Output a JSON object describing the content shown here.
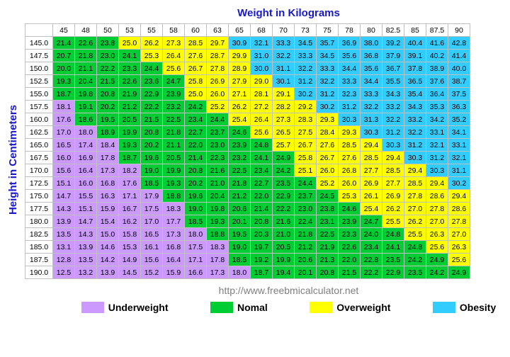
{
  "title_x": "Weight in Kilograms",
  "title_y": "Height in Centimeters",
  "source": "http://www.freebmicalculator.net",
  "colors": {
    "underweight": "#cc99ff",
    "normal": "#00cc33",
    "overweight": "#ffff00",
    "obesity": "#33ccff",
    "border": "#c0c0c0",
    "label": "#1919c8",
    "source": "#808080"
  },
  "thresholds": {
    "underweight_max": 18.5,
    "normal_max": 25.0,
    "overweight_max": 30.0
  },
  "weights": [
    45,
    48,
    50,
    53,
    55,
    58,
    60,
    63,
    65,
    68,
    70,
    73,
    75,
    78,
    80,
    82.5,
    85,
    87.5,
    90
  ],
  "heights": [
    145.0,
    147.5,
    150.0,
    152.5,
    155.0,
    157.5,
    160.0,
    162.5,
    165.0,
    167.5,
    170.0,
    172.5,
    175.0,
    177.5,
    180.0,
    182.5,
    185.0,
    187.5,
    190.0
  ],
  "cells": [
    [
      21.4,
      22.6,
      23.8,
      25.0,
      26.2,
      27.3,
      28.5,
      29.7,
      30.9,
      32.1,
      33.3,
      34.5,
      35.7,
      36.9,
      38.0,
      39.2,
      40.4,
      41.6,
      42.8
    ],
    [
      20.7,
      21.8,
      23.0,
      24.1,
      25.3,
      26.4,
      27.6,
      28.7,
      29.9,
      31.0,
      32.2,
      33.3,
      34.5,
      35.6,
      36.8,
      37.9,
      39.1,
      40.2,
      41.4
    ],
    [
      20.0,
      21.1,
      22.2,
      23.3,
      24.4,
      25.6,
      26.7,
      27.8,
      28.9,
      30.0,
      31.1,
      32.2,
      33.3,
      34.4,
      35.6,
      36.7,
      37.8,
      38.9,
      40.0
    ],
    [
      19.3,
      20.4,
      21.5,
      22.6,
      23.6,
      24.7,
      25.8,
      26.9,
      27.9,
      29.0,
      30.1,
      31.2,
      32.2,
      33.3,
      34.4,
      35.5,
      36.5,
      37.6,
      38.7
    ],
    [
      18.7,
      19.8,
      20.8,
      21.9,
      22.9,
      23.9,
      25.0,
      26.0,
      27.1,
      28.1,
      29.1,
      30.2,
      31.2,
      32.3,
      33.3,
      34.3,
      35.4,
      36.4,
      37.5
    ],
    [
      18.1,
      19.1,
      20.2,
      21.2,
      22.2,
      23.2,
      24.2,
      25.2,
      26.2,
      27.2,
      28.2,
      29.2,
      30.2,
      31.2,
      32.2,
      33.2,
      34.3,
      35.3,
      36.3
    ],
    [
      17.6,
      18.6,
      19.5,
      20.5,
      21.5,
      22.5,
      23.4,
      24.4,
      25.4,
      26.4,
      27.3,
      28.3,
      29.3,
      30.3,
      31.3,
      32.2,
      33.2,
      34.2,
      35.2
    ],
    [
      17.0,
      18.0,
      18.9,
      19.9,
      20.8,
      21.8,
      22.7,
      23.7,
      24.6,
      25.6,
      26.5,
      27.5,
      28.4,
      29.3,
      30.3,
      31.2,
      32.2,
      33.1,
      34.1
    ],
    [
      16.5,
      17.4,
      18.4,
      19.3,
      20.2,
      21.1,
      22.0,
      23.0,
      23.9,
      24.8,
      25.7,
      26.7,
      27.6,
      28.5,
      29.4,
      30.3,
      31.2,
      32.1,
      33.1
    ],
    [
      16.0,
      16.9,
      17.8,
      18.7,
      19.6,
      20.5,
      21.4,
      22.3,
      23.2,
      24.1,
      24.9,
      25.8,
      26.7,
      27.6,
      28.5,
      29.4,
      30.3,
      31.2,
      32.1
    ],
    [
      15.6,
      16.4,
      17.3,
      18.2,
      19.0,
      19.9,
      20.8,
      21.6,
      22.5,
      23.4,
      24.2,
      25.1,
      26.0,
      26.8,
      27.7,
      28.5,
      29.4,
      30.3,
      31.1
    ],
    [
      15.1,
      16.0,
      16.8,
      17.6,
      18.5,
      19.3,
      20.2,
      21.0,
      21.8,
      22.7,
      23.5,
      24.4,
      25.2,
      26.0,
      26.9,
      27.7,
      28.5,
      29.4,
      30.2
    ],
    [
      14.7,
      15.5,
      16.3,
      17.1,
      17.9,
      18.8,
      19.6,
      20.4,
      21.2,
      22.0,
      22.9,
      23.7,
      24.5,
      25.3,
      26.1,
      26.9,
      27.8,
      28.6,
      29.4
    ],
    [
      14.3,
      15.1,
      15.9,
      16.7,
      17.5,
      18.3,
      19.0,
      19.8,
      20.6,
      21.4,
      22.2,
      23.0,
      23.8,
      24.6,
      25.4,
      26.2,
      27.0,
      27.8,
      28.6
    ],
    [
      13.9,
      14.7,
      15.4,
      16.2,
      17.0,
      17.7,
      18.5,
      19.3,
      20.1,
      20.8,
      21.6,
      22.4,
      23.1,
      23.9,
      24.7,
      25.5,
      26.2,
      27.0,
      27.8
    ],
    [
      13.5,
      14.3,
      15.0,
      15.8,
      16.5,
      17.3,
      18.0,
      18.8,
      19.5,
      20.3,
      21.0,
      21.8,
      22.5,
      23.3,
      24.0,
      24.8,
      25.5,
      26.3,
      27.0
    ],
    [
      13.1,
      13.9,
      14.6,
      15.3,
      16.1,
      16.8,
      17.5,
      18.3,
      19.0,
      19.7,
      20.5,
      21.2,
      21.9,
      22.6,
      23.4,
      24.1,
      24.8,
      25.6,
      26.3
    ],
    [
      12.8,
      13.5,
      14.2,
      14.9,
      15.6,
      16.4,
      17.1,
      17.8,
      18.5,
      19.2,
      19.9,
      20.6,
      21.3,
      22.0,
      22.8,
      23.5,
      24.2,
      24.9,
      25.6
    ],
    [
      12.5,
      13.2,
      13.9,
      14.5,
      15.2,
      15.9,
      16.6,
      17.3,
      18.0,
      18.7,
      19.4,
      20.1,
      20.8,
      21.5,
      22.2,
      22.9,
      23.5,
      24.2,
      24.9
    ]
  ],
  "legend": [
    {
      "label": "Underweight",
      "key": "underweight"
    },
    {
      "label": "Nomal",
      "key": "normal"
    },
    {
      "label": "Overweight",
      "key": "overweight"
    },
    {
      "label": "Obesity",
      "key": "obesity"
    }
  ]
}
